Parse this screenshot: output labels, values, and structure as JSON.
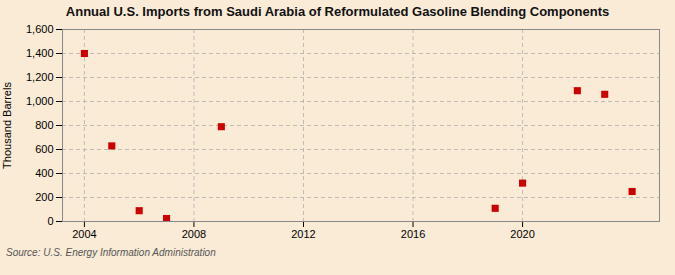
{
  "chart_data": {
    "type": "scatter",
    "title": "Annual U.S. Imports from Saudi Arabia of Reformulated Gasoline Blending Components",
    "ylabel": "Thousand Barrels",
    "source": "Source: U.S. Energy Information Administration",
    "x": [
      2004,
      2005,
      2006,
      2007,
      2009,
      2019,
      2020,
      2022,
      2023,
      2024
    ],
    "values": [
      1400,
      630,
      90,
      25,
      790,
      110,
      320,
      1090,
      1060,
      250
    ],
    "color": "#cc0000",
    "marker": "square",
    "xlim": [
      2003.2,
      2025.0
    ],
    "xticks": [
      2004,
      2008,
      2012,
      2016,
      2020
    ],
    "ylim": [
      0,
      1600
    ],
    "yticks": [
      0,
      200,
      400,
      600,
      800,
      {
        "value": 1000,
        "label": "1,000"
      },
      {
        "value": 1200,
        "label": "1,200"
      },
      {
        "value": 1400,
        "label": "1,400"
      },
      {
        "value": 1600,
        "label": "1,600"
      }
    ],
    "grid": true
  }
}
